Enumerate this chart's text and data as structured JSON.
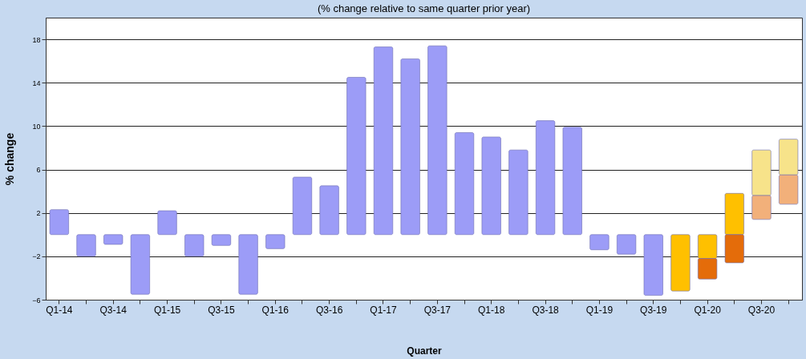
{
  "chart_data": {
    "type": "bar",
    "title": "(% change relative to same quarter prior year)",
    "xlabel": "Quarter",
    "ylabel": "% change",
    "categories": [
      "Q1-14",
      null,
      "Q3-14",
      null,
      "Q1-15",
      null,
      "Q3-15",
      null,
      "Q1-16",
      null,
      "Q3-16",
      null,
      "Q1-17",
      null,
      "Q3-17",
      null,
      "Q1-18",
      null,
      "Q3-18",
      null,
      "Q1-19",
      null,
      "Q3-19",
      null,
      "Q1-20",
      null,
      "Q3-20",
      null
    ],
    "series": [
      {
        "color": "#9c9cf7",
        "values": [
          2.3,
          -2.0,
          -0.9,
          -5.5,
          2.2,
          -2.0,
          -1.0,
          -5.5,
          -1.3,
          5.3,
          4.5,
          14.5,
          17.3,
          16.2,
          17.4,
          9.4,
          9.0,
          7.8,
          10.5,
          9.9,
          -1.4,
          -1.8,
          -5.6,
          null,
          null,
          null,
          null,
          null
        ]
      },
      {
        "color": "#ffc000",
        "values": [
          null,
          null,
          null,
          null,
          null,
          null,
          null,
          null,
          null,
          null,
          null,
          null,
          null,
          null,
          null,
          null,
          null,
          null,
          null,
          null,
          null,
          null,
          null,
          -5.2,
          -2.2,
          3.8,
          null,
          null
        ]
      },
      {
        "color": "#e46c0a",
        "base": [
          null,
          null,
          null,
          null,
          null,
          null,
          null,
          null,
          null,
          null,
          null,
          null,
          null,
          null,
          null,
          null,
          null,
          null,
          null,
          null,
          null,
          null,
          null,
          null,
          -2.2,
          0,
          null,
          null
        ],
        "values": [
          null,
          null,
          null,
          null,
          null,
          null,
          null,
          null,
          null,
          null,
          null,
          null,
          null,
          null,
          null,
          null,
          null,
          null,
          null,
          null,
          null,
          null,
          null,
          null,
          -1.9,
          -2.6,
          null,
          null
        ]
      },
      {
        "color": "#f7e38a",
        "base": [
          null,
          null,
          null,
          null,
          null,
          null,
          null,
          null,
          null,
          null,
          null,
          null,
          null,
          null,
          null,
          null,
          null,
          null,
          null,
          null,
          null,
          null,
          null,
          null,
          null,
          null,
          3.6,
          5.5
        ],
        "values": [
          null,
          null,
          null,
          null,
          null,
          null,
          null,
          null,
          null,
          null,
          null,
          null,
          null,
          null,
          null,
          null,
          null,
          null,
          null,
          null,
          null,
          null,
          null,
          null,
          null,
          null,
          4.2,
          3.3
        ]
      },
      {
        "color": "#f2b07a",
        "base": [
          null,
          null,
          null,
          null,
          null,
          null,
          null,
          null,
          null,
          null,
          null,
          null,
          null,
          null,
          null,
          null,
          null,
          null,
          null,
          null,
          null,
          null,
          null,
          null,
          null,
          null,
          1.4,
          2.8
        ],
        "values": [
          null,
          null,
          null,
          null,
          null,
          null,
          null,
          null,
          null,
          null,
          null,
          null,
          null,
          null,
          null,
          null,
          null,
          null,
          null,
          null,
          null,
          null,
          null,
          null,
          null,
          null,
          2.2,
          2.7
        ]
      }
    ],
    "ylim": [
      -6,
      20
    ],
    "yticks": [
      -6,
      -2,
      2,
      6,
      10,
      14,
      18
    ],
    "grid": "y"
  }
}
